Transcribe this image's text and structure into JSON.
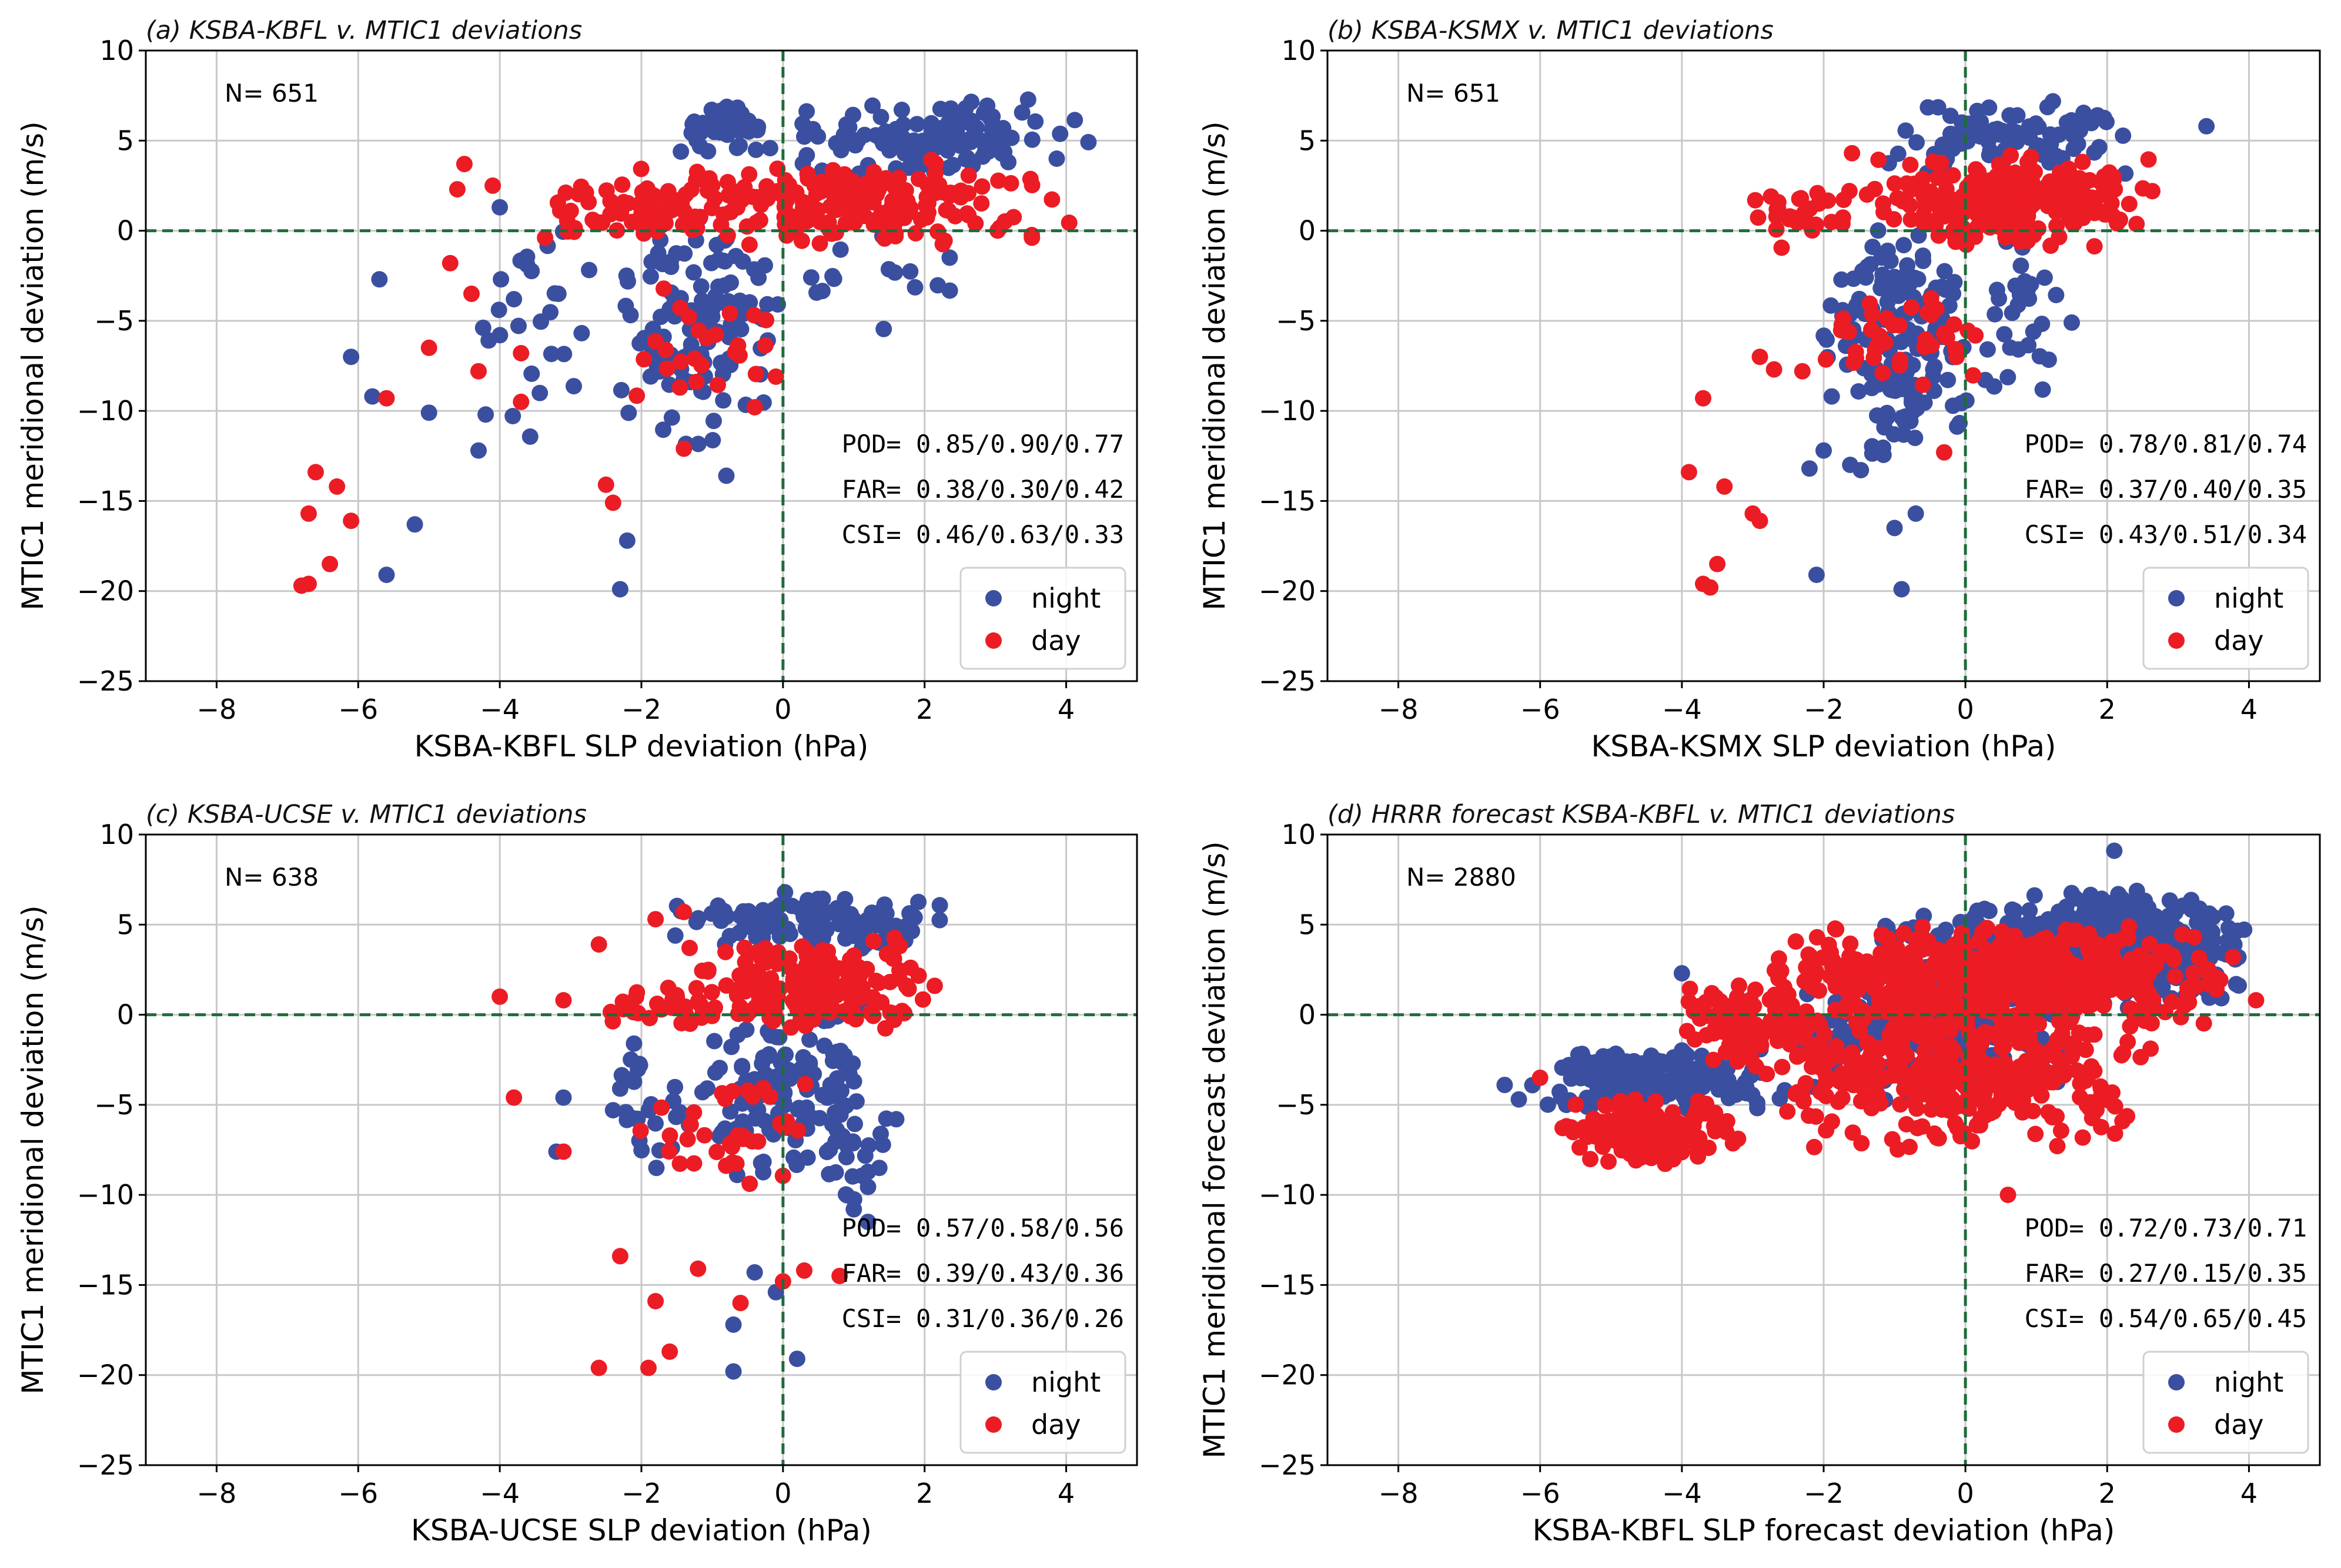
{
  "colors": {
    "night": "#3b4fa0",
    "day": "#ec1c24",
    "refline": "#1f6b3a",
    "grid": "#c8c8c8"
  },
  "chart_data": [
    {
      "type": "scatter",
      "title": "(a) KSBA-KBFL v. MTIC1 deviations",
      "xlabel": "KSBA-KBFL SLP deviation (hPa)",
      "ylabel": "MTIC1 meridional deviation (m/s)",
      "xlim": [
        -9,
        5
      ],
      "ylim": [
        -25,
        10
      ],
      "xticks": [
        -8,
        -6,
        -4,
        -2,
        0,
        2,
        4
      ],
      "yticks": [
        -25,
        -20,
        -15,
        -10,
        -5,
        0,
        5,
        10
      ],
      "xtick_labels": [
        "−8",
        "−6",
        "−4",
        "−2",
        "0",
        "2",
        "4"
      ],
      "ytick_labels": [
        "−25",
        "−20",
        "−15",
        "−10",
        "−5",
        "0",
        "5",
        "10"
      ],
      "count_label": "N= 651",
      "stats": [
        "POD= 0.85/0.90/0.77",
        "FAR= 0.38/0.30/0.42",
        "CSI= 0.46/0.63/0.33"
      ],
      "legend": [
        "night",
        "day"
      ],
      "series": [
        {
          "name": "night",
          "gen": {
            "seed": 11,
            "clusters": [
              {
                "n": 120,
                "x": [
                  0,
                  4.5
                ],
                "y": [
                  3,
                  7.5
                ]
              },
              {
                "n": 40,
                "x": [
                  -1.5,
                  0
                ],
                "y": [
                  4,
                  7.5
                ]
              },
              {
                "n": 120,
                "x": [
                  -2.5,
                  0
                ],
                "y": [
                  -12,
                  2
                ]
              },
              {
                "n": 25,
                "x": [
                  -4.5,
                  -2.5
                ],
                "y": [
                  -12,
                  1
                ]
              },
              {
                "n": 15,
                "x": [
                  0,
                  3
                ],
                "y": [
                  -6,
                  0
                ]
              }
            ],
            "points": [
              [
                -6.1,
                -7
              ],
              [
                -5.8,
                -9.2
              ],
              [
                -5.7,
                -2.7
              ],
              [
                -5,
                -10.1
              ],
              [
                -5.6,
                -19.1
              ],
              [
                -5.2,
                -16.3
              ],
              [
                -4.3,
                -12.2
              ],
              [
                -4.2,
                -10.2
              ],
              [
                -3.8,
                -3.8
              ],
              [
                -4,
                1.3
              ],
              [
                -2.3,
                -19.9
              ],
              [
                -2.2,
                -17.2
              ],
              [
                -0.8,
                -13.6
              ]
            ]
          }
        },
        {
          "name": "day",
          "gen": {
            "seed": 12,
            "clusters": [
              {
                "n": 200,
                "x": [
                  -2.5,
                  4.5
                ],
                "y": [
                  -1,
                  4
                ]
              },
              {
                "n": 40,
                "x": [
                  -3.5,
                  -1
                ],
                "y": [
                  -1,
                  3
                ]
              },
              {
                "n": 25,
                "x": [
                  -2.2,
                  0
                ],
                "y": [
                  -10,
                  -3
                ]
              }
            ],
            "points": [
              [
                -6.8,
                -19.7
              ],
              [
                -6.7,
                -19.6
              ],
              [
                -6.4,
                -18.5
              ],
              [
                -6.1,
                -16.1
              ],
              [
                -6.7,
                -15.7
              ],
              [
                -6.3,
                -14.2
              ],
              [
                -6.6,
                -13.4
              ],
              [
                -5.6,
                -9.3
              ],
              [
                -5,
                -6.5
              ],
              [
                -4.4,
                -3.5
              ],
              [
                -4.3,
                -7.8
              ],
              [
                -3.7,
                -6.8
              ],
              [
                -3.7,
                -9.5
              ],
              [
                -4.5,
                3.7
              ],
              [
                -4.6,
                2.3
              ],
              [
                -4.1,
                2.5
              ],
              [
                -4.7,
                -1.8
              ],
              [
                -2.5,
                -14.1
              ],
              [
                -2.4,
                -15.1
              ],
              [
                -1.4,
                -12.1
              ],
              [
                -0.4,
                -9.8
              ],
              [
                -0.1,
                -8.1
              ],
              [
                -1,
                2.5
              ]
            ]
          }
        }
      ]
    },
    {
      "type": "scatter",
      "title": "(b) KSBA-KSMX v. MTIC1 deviations",
      "xlabel": "KSBA-KSMX SLP deviation (hPa)",
      "ylabel": "MTIC1 meridional deviation (m/s)",
      "xlim": [
        -9,
        5
      ],
      "ylim": [
        -25,
        10
      ],
      "xticks": [
        -8,
        -6,
        -4,
        -2,
        0,
        2,
        4
      ],
      "yticks": [
        -25,
        -20,
        -15,
        -10,
        -5,
        0,
        5,
        10
      ],
      "xtick_labels": [
        "−8",
        "−6",
        "−4",
        "−2",
        "0",
        "2",
        "4"
      ],
      "ytick_labels": [
        "−25",
        "−20",
        "−15",
        "−10",
        "−5",
        "0",
        "5",
        "10"
      ],
      "count_label": "N= 651",
      "stats": [
        "POD= 0.78/0.81/0.74",
        "FAR= 0.37/0.40/0.35",
        "CSI= 0.43/0.51/0.34"
      ],
      "legend": [
        "night",
        "day"
      ],
      "series": [
        {
          "name": "night",
          "gen": {
            "seed": 21,
            "clusters": [
              {
                "n": 90,
                "x": [
                  -1.2,
                  2.8
                ],
                "y": [
                  3,
                  7.5
                ]
              },
              {
                "n": 150,
                "x": [
                  -2.2,
                  0.2
                ],
                "y": [
                  -14,
                  1
                ]
              },
              {
                "n": 30,
                "x": [
                  0,
                  1.5
                ],
                "y": [
                  -10,
                  0
                ]
              }
            ],
            "points": [
              [
                3.4,
                5.8
              ],
              [
                -2.1,
                -19.1
              ],
              [
                -0.9,
                -19.9
              ],
              [
                -1,
                -16.5
              ],
              [
                -0.7,
                -15.7
              ],
              [
                1.5,
                -5.1
              ],
              [
                -2,
                -12.2
              ],
              [
                -2.2,
                -13.2
              ]
            ]
          }
        },
        {
          "name": "day",
          "gen": {
            "seed": 22,
            "clusters": [
              {
                "n": 230,
                "x": [
                  -1.5,
                  2.8
                ],
                "y": [
                  -1,
                  4.5
                ]
              },
              {
                "n": 30,
                "x": [
                  -3,
                  -1.5
                ],
                "y": [
                  -1,
                  3
                ]
              },
              {
                "n": 40,
                "x": [
                  -2.5,
                  0.5
                ],
                "y": [
                  -9,
                  -3
                ]
              }
            ],
            "points": [
              [
                -3.9,
                -13.4
              ],
              [
                -3.4,
                -14.2
              ],
              [
                -3.5,
                -18.5
              ],
              [
                -3.7,
                -19.6
              ],
              [
                -3.6,
                -19.8
              ],
              [
                -2.9,
                -16.1
              ],
              [
                -3,
                -15.7
              ],
              [
                -3.7,
                -9.3
              ],
              [
                -2.9,
                -7
              ],
              [
                -2.7,
                -7.7
              ],
              [
                -2.3,
                -7.8
              ],
              [
                -0.3,
                -12.3
              ],
              [
                -1.6,
                4.3
              ]
            ]
          }
        }
      ]
    },
    {
      "type": "scatter",
      "title": "(c) KSBA-UCSE v. MTIC1 deviations",
      "xlabel": "KSBA-UCSE SLP deviation (hPa)",
      "ylabel": "MTIC1 meridional deviation (m/s)",
      "xlim": [
        -9,
        5
      ],
      "ylim": [
        -25,
        10
      ],
      "xticks": [
        -8,
        -6,
        -4,
        -2,
        0,
        2,
        4
      ],
      "yticks": [
        -25,
        -20,
        -15,
        -10,
        -5,
        0,
        5,
        10
      ],
      "xtick_labels": [
        "−8",
        "−6",
        "−4",
        "−2",
        "0",
        "2",
        "4"
      ],
      "ytick_labels": [
        "−25",
        "−20",
        "−15",
        "−10",
        "−5",
        "0",
        "5",
        "10"
      ],
      "count_label": "N= 638",
      "stats": [
        "POD= 0.57/0.58/0.56",
        "FAR= 0.39/0.43/0.36",
        "CSI= 0.31/0.36/0.26"
      ],
      "legend": [
        "night",
        "day"
      ],
      "series": [
        {
          "name": "night",
          "gen": {
            "seed": 31,
            "clusters": [
              {
                "n": 110,
                "x": [
                  -1.6,
                  2.5
                ],
                "y": [
                  3.5,
                  7
                ]
              },
              {
                "n": 120,
                "x": [
                  -1.5,
                  1.5
                ],
                "y": [
                  -10,
                  1
                ]
              },
              {
                "n": 25,
                "x": [
                  -2.5,
                  -1
                ],
                "y": [
                  -10,
                  -1
                ]
              },
              {
                "n": 20,
                "x": [
                  0.5,
                  1.5
                ],
                "y": [
                  -11,
                  -5
                ]
              }
            ],
            "points": [
              [
                -3.2,
                -7.6
              ],
              [
                -3.1,
                -4.6
              ],
              [
                -2.4,
                -5.3
              ],
              [
                -2.3,
                -4.1
              ],
              [
                -0.7,
                -19.8
              ],
              [
                0.2,
                -19.1
              ],
              [
                -0.7,
                -17.2
              ],
              [
                -0.1,
                -15.4
              ],
              [
                -0.4,
                -14.3
              ],
              [
                1,
                -10.8
              ],
              [
                1.2,
                -11.5
              ],
              [
                1.6,
                -5.8
              ]
            ]
          }
        },
        {
          "name": "day",
          "gen": {
            "seed": 32,
            "clusters": [
              {
                "n": 200,
                "x": [
                  -1.5,
                  2.2
                ],
                "y": [
                  -1,
                  4.5
                ]
              },
              {
                "n": 25,
                "x": [
                  -2.5,
                  -1
                ],
                "y": [
                  -1,
                  2
                ]
              },
              {
                "n": 35,
                "x": [
                  -2.2,
                  0.5
                ],
                "y": [
                  -10,
                  -3
                ]
              }
            ],
            "points": [
              [
                -4,
                1
              ],
              [
                -3.1,
                0.8
              ],
              [
                -3.8,
                -4.6
              ],
              [
                -3.1,
                -7.6
              ],
              [
                -2.6,
                3.9
              ],
              [
                -2.6,
                -19.6
              ],
              [
                -1.9,
                -19.6
              ],
              [
                -1.6,
                -18.7
              ],
              [
                -1.8,
                -15.9
              ],
              [
                -2.3,
                -13.4
              ],
              [
                -1.2,
                -14.1
              ],
              [
                -0.6,
                -16
              ],
              [
                0,
                -14.8
              ],
              [
                0.3,
                -14.2
              ],
              [
                0.8,
                -14.5
              ],
              [
                -1.8,
                5.3
              ],
              [
                -1.4,
                5.7
              ]
            ]
          }
        }
      ]
    },
    {
      "type": "scatter",
      "title": "(d) HRRR forecast KSBA-KBFL v. MTIC1 deviations",
      "xlabel": "KSBA-KBFL SLP forecast deviation (hPa)",
      "ylabel": "MTIC1 meridional forecast deviation (m/s)",
      "xlim": [
        -9,
        5
      ],
      "ylim": [
        -25,
        10
      ],
      "xticks": [
        -8,
        -6,
        -4,
        -2,
        0,
        2,
        4
      ],
      "yticks": [
        -25,
        -20,
        -15,
        -10,
        -5,
        0,
        5,
        10
      ],
      "xtick_labels": [
        "−8",
        "−6",
        "−4",
        "−2",
        "0",
        "2",
        "4"
      ],
      "ytick_labels": [
        "−25",
        "−20",
        "−15",
        "−10",
        "−5",
        "0",
        "5",
        "10"
      ],
      "count_label": "N= 2880",
      "stats": [
        "POD= 0.72/0.73/0.71",
        "FAR= 0.27/0.15/0.35",
        "CSI= 0.54/0.65/0.45"
      ],
      "legend": [
        "night",
        "day"
      ],
      "series": [
        {
          "name": "night",
          "gen": {
            "seed": 41,
            "clusters": [
              {
                "n": 450,
                "x": [
                  0.5,
                  4.2
                ],
                "y": [
                  0,
                  7
                ]
              },
              {
                "n": 200,
                "x": [
                  -6.2,
                  -2.5
                ],
                "y": [
                  -5.5,
                  -1.5
                ]
              },
              {
                "n": 300,
                "x": [
                  -2.5,
                  1.5
                ],
                "y": [
                  -5,
                  3
                ]
              },
              {
                "n": 80,
                "x": [
                  -1.5,
                  2.5
                ],
                "y": [
                  3,
                  6
                ]
              }
            ],
            "points": [
              [
                2.1,
                9.1
              ],
              [
                -6.5,
                -3.9
              ],
              [
                -6.3,
                -4.7
              ],
              [
                -4,
                2.3
              ]
            ]
          }
        },
        {
          "name": "day",
          "gen": {
            "seed": 42,
            "clusters": [
              {
                "n": 550,
                "x": [
                  -3,
                  4
                ],
                "y": [
                  -1,
                  5
                ]
              },
              {
                "n": 350,
                "x": [
                  -3,
                  3
                ],
                "y": [
                  -8,
                  1
                ]
              },
              {
                "n": 180,
                "x": [
                  -5.8,
                  -3.2
                ],
                "y": [
                  -8.5,
                  -4.5
                ]
              },
              {
                "n": 100,
                "x": [
                  -4,
                  -2
                ],
                "y": [
                  -3,
                  2
                ]
              }
            ],
            "points": [
              [
                -6,
                -3.5
              ],
              [
                4.1,
                0.8
              ],
              [
                0.6,
                -10
              ]
            ]
          }
        }
      ]
    }
  ]
}
